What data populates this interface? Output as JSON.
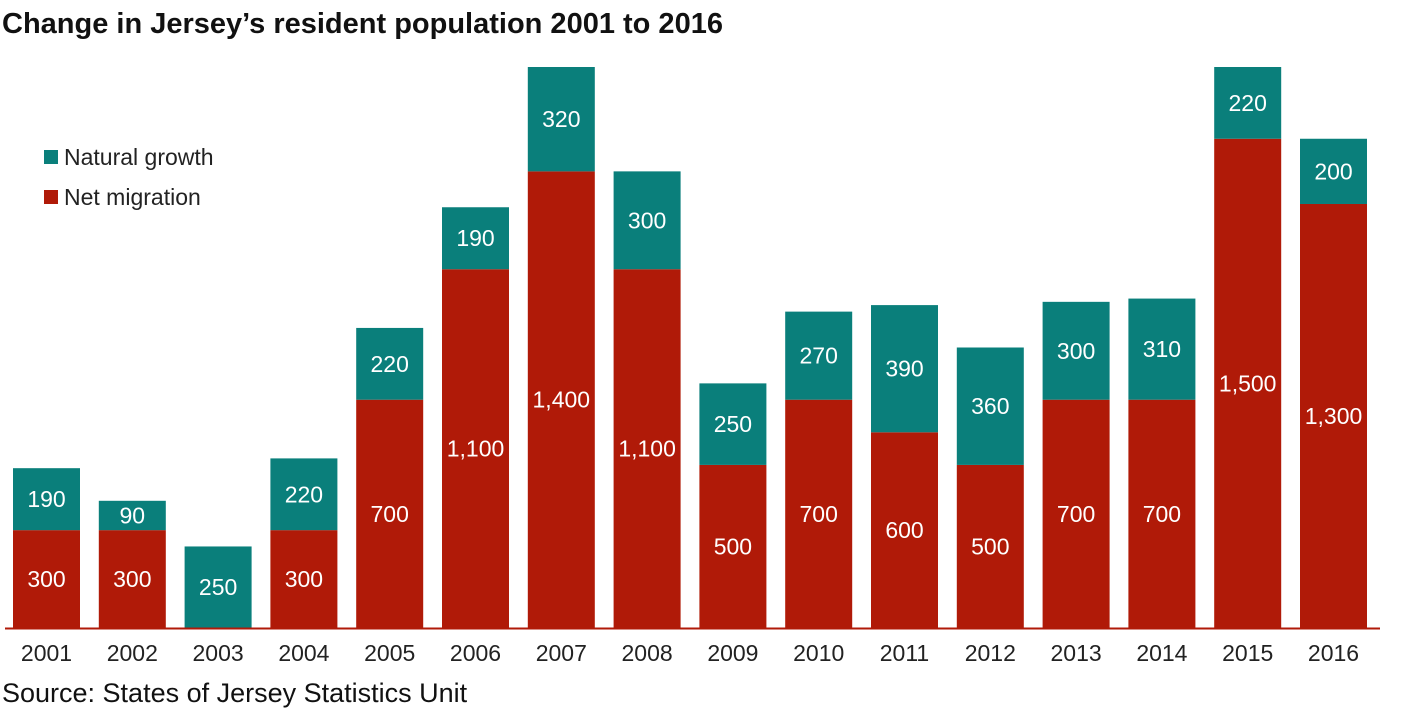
{
  "title": "Change in Jersey’s resident population 2001 to 2016",
  "source": "Source: States of Jersey Statistics Unit",
  "colors": {
    "natural_growth": "#0a7f7b",
    "net_migration": "#b01a08",
    "axis": "#b01a08",
    "label": "#ffffff"
  },
  "chart_data": {
    "type": "bar",
    "stacked": true,
    "title": "Change in Jersey’s resident population 2001 to 2016",
    "categories": [
      "2001",
      "2002",
      "2003",
      "2004",
      "2005",
      "2006",
      "2007",
      "2008",
      "2009",
      "2010",
      "2011",
      "2012",
      "2013",
      "2014",
      "2015",
      "2016"
    ],
    "series": [
      {
        "name": "Net migration",
        "values": [
          300,
          300,
          0,
          300,
          700,
          1100,
          1400,
          1100,
          500,
          700,
          600,
          500,
          700,
          700,
          1500,
          1300
        ],
        "labels": [
          "300",
          "300",
          "",
          "300",
          "700",
          "1,100",
          "1,400",
          "1,100",
          "500",
          "700",
          "600",
          "500",
          "700",
          "700",
          "1,500",
          "1,300"
        ]
      },
      {
        "name": "Natural growth",
        "values": [
          190,
          90,
          250,
          220,
          220,
          190,
          320,
          300,
          250,
          270,
          390,
          360,
          300,
          310,
          220,
          200
        ],
        "labels": [
          "190",
          "90",
          "250",
          "220",
          "220",
          "190",
          "320",
          "300",
          "250",
          "270",
          "390",
          "360",
          "300",
          "310",
          "220",
          "200"
        ]
      }
    ],
    "ylim": [
      0,
      1720
    ],
    "xlabel": "",
    "ylabel": "",
    "grid": false,
    "legend": "top-left"
  }
}
